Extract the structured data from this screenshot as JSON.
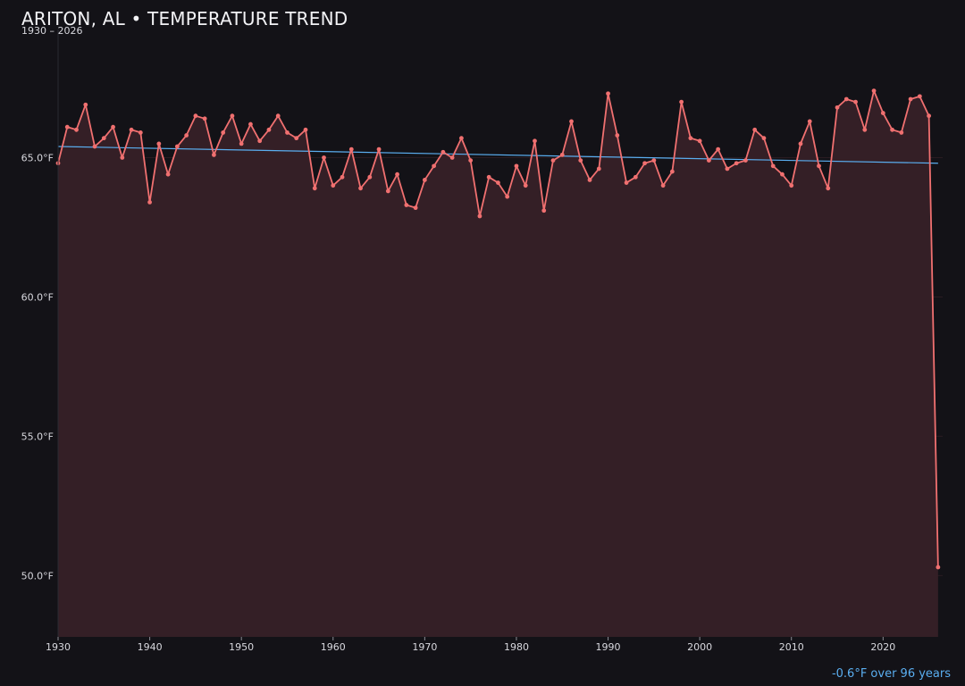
{
  "header": {
    "title": "ARITON, AL • TEMPERATURE TREND",
    "subtitle": "1930 – 2026"
  },
  "footer": {
    "trend_note": "-0.6°F over 96 years"
  },
  "colors": {
    "background": "#131217",
    "line": "#f07070",
    "area": "#341f26",
    "trend": "#5aaef0",
    "grid": "#2a1c22"
  },
  "chart_data": {
    "type": "line",
    "title": "ARITON, AL • TEMPERATURE TREND",
    "subtitle": "1930 – 2026",
    "xlabel": "",
    "ylabel": "",
    "xlim": [
      1930,
      2026.5
    ],
    "ylim": [
      47.8,
      69.6
    ],
    "x_ticks": [
      1930,
      1940,
      1950,
      1960,
      1970,
      1980,
      1990,
      2000,
      2010,
      2020
    ],
    "x_tick_labels": [
      "1930",
      "1940",
      "1950",
      "1960",
      "1970",
      "1980",
      "1990",
      "2000",
      "2010",
      "2020"
    ],
    "y_ticks": [
      50,
      55,
      60,
      65
    ],
    "y_tick_labels": [
      "50.0°F",
      "55.0°F",
      "60.0°F",
      "65.0°F"
    ],
    "grid": "horizontal",
    "legend": "none",
    "area_fill": true,
    "series": [
      {
        "x": [
          1930,
          1931,
          1932,
          1933,
          1934,
          1935,
          1936,
          1937,
          1938,
          1939,
          1940,
          1941,
          1942,
          1943,
          1944,
          1945,
          1946,
          1947,
          1948,
          1949,
          1950,
          1951,
          1952,
          1953,
          1954,
          1955,
          1956,
          1957,
          1958,
          1959,
          1960,
          1961,
          1962,
          1963,
          1964,
          1965,
          1966,
          1967,
          1968,
          1969,
          1970,
          1971,
          1972,
          1973,
          1974,
          1975,
          1976,
          1977,
          1978,
          1979,
          1980,
          1981,
          1982,
          1983,
          1984,
          1985,
          1986,
          1987,
          1988,
          1989,
          1990,
          1991,
          1992,
          1993,
          1994,
          1995,
          1996,
          1997,
          1998,
          1999,
          2000,
          2001,
          2002,
          2003,
          2004,
          2005,
          2006,
          2007,
          2008,
          2009,
          2010,
          2011,
          2012,
          2013,
          2014,
          2015,
          2016,
          2017,
          2018,
          2019,
          2020,
          2021,
          2022,
          2023,
          2024,
          2025,
          2026
        ],
        "values": [
          64.8,
          66.1,
          66.0,
          66.9,
          65.4,
          65.7,
          66.1,
          65.0,
          66.0,
          65.9,
          63.4,
          65.5,
          64.4,
          65.4,
          65.8,
          66.5,
          66.4,
          65.1,
          65.9,
          66.5,
          65.5,
          66.2,
          65.6,
          66.0,
          66.5,
          65.9,
          65.7,
          66.0,
          63.9,
          65.0,
          64.0,
          64.3,
          65.3,
          63.9,
          64.3,
          65.3,
          63.8,
          64.4,
          63.3,
          63.2,
          64.2,
          64.7,
          65.2,
          65.0,
          65.7,
          64.9,
          62.9,
          64.3,
          64.1,
          63.6,
          64.7,
          64.0,
          65.6,
          63.1,
          64.9,
          65.1,
          66.3,
          64.9,
          64.2,
          64.6,
          67.3,
          65.8,
          64.1,
          64.3,
          64.8,
          64.9,
          64.0,
          64.5,
          67.0,
          65.7,
          65.6,
          64.9,
          65.3,
          64.6,
          64.8,
          64.9,
          66.0,
          65.7,
          64.7,
          64.4,
          64.0,
          65.5,
          66.3,
          64.7,
          63.9,
          66.8,
          67.1,
          67.0,
          66.0,
          67.4,
          66.6,
          66.0,
          65.9,
          67.1,
          67.2,
          66.5,
          50.3
        ]
      },
      {
        "type": "trendline",
        "x": [
          1930,
          2026
        ],
        "values": [
          65.4,
          64.8
        ]
      }
    ]
  }
}
